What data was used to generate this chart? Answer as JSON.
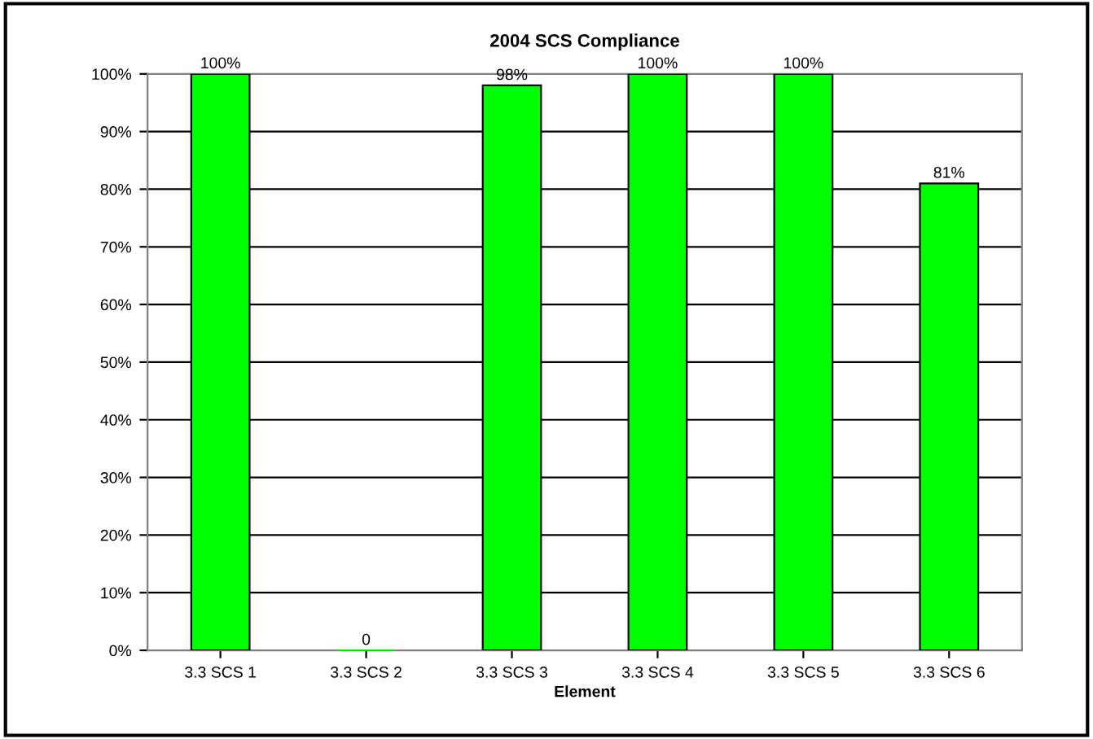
{
  "chart_data": {
    "type": "bar",
    "title": "2004 SCS Compliance",
    "xlabel": "Element",
    "categories": [
      "3.3 SCS 1",
      "3.3 SCS 2",
      "3.3 SCS 3",
      "3.3 SCS 4",
      "3.3 SCS 5",
      "3.3 SCS 6"
    ],
    "values": [
      100,
      0,
      98,
      100,
      100,
      81
    ],
    "value_labels": [
      "100%",
      "0",
      "98%",
      "100%",
      "100%",
      "81%"
    ],
    "color": "#00ff00",
    "ylim": [
      0,
      100
    ],
    "yticks": [
      {
        "value": 0,
        "label": "0%"
      },
      {
        "value": 10,
        "label": "10%"
      },
      {
        "value": 20,
        "label": "20%"
      },
      {
        "value": 30,
        "label": "30%"
      },
      {
        "value": 40,
        "label": "40%"
      },
      {
        "value": 50,
        "label": "50%"
      },
      {
        "value": 60,
        "label": "60%"
      },
      {
        "value": 70,
        "label": "70%"
      },
      {
        "value": 80,
        "label": "80%"
      },
      {
        "value": 90,
        "label": "90%"
      },
      {
        "value": 100,
        "label": "100%"
      }
    ],
    "grid": "y"
  }
}
